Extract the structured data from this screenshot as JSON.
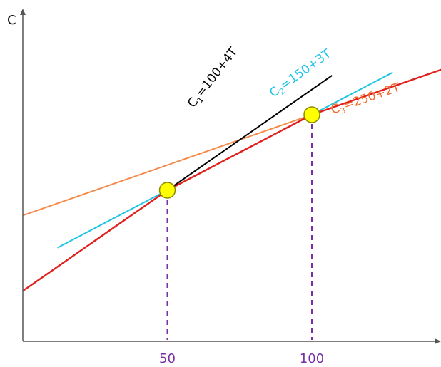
{
  "chart_data": {
    "type": "line",
    "ylabel": "C",
    "xlabel": "",
    "x_ticks": [
      50,
      100
    ],
    "series": [
      {
        "id": "c1",
        "label_main": "C",
        "label_sub": "1",
        "label_rest": "=100+4T",
        "intercept": 100,
        "slope": 4,
        "x_start": 50,
        "x_end": 107,
        "color": "#000000"
      },
      {
        "id": "c2",
        "label_main": "C",
        "label_sub": "2",
        "label_rest": "=150+3T",
        "intercept": 150,
        "slope": 3,
        "x_start": 12,
        "x_end": 128,
        "color": "#1fc4e6"
      },
      {
        "id": "c3",
        "label_main": "C",
        "label_sub": "3",
        "label_rest": "=250+2T",
        "intercept": 250,
        "slope": 2,
        "x_start": 0,
        "x_end": 146,
        "color": "#f58a4b"
      },
      {
        "id": "envelope",
        "label_main": "",
        "label_sub": "",
        "label_rest": "",
        "points": [
          [
            0,
            100
          ],
          [
            50,
            300
          ],
          [
            100,
            450
          ],
          [
            146,
            542
          ]
        ],
        "color": "#e0201c"
      }
    ],
    "intersections": [
      {
        "x": 50,
        "y": 300
      },
      {
        "x": 100,
        "y": 450
      }
    ],
    "colors": {
      "axis": "#555555",
      "dashed": "#7a2fa6",
      "tick_label": "#7a2fa6",
      "marker_fill": "#ffff00",
      "marker_stroke": "#8a8a00"
    }
  }
}
